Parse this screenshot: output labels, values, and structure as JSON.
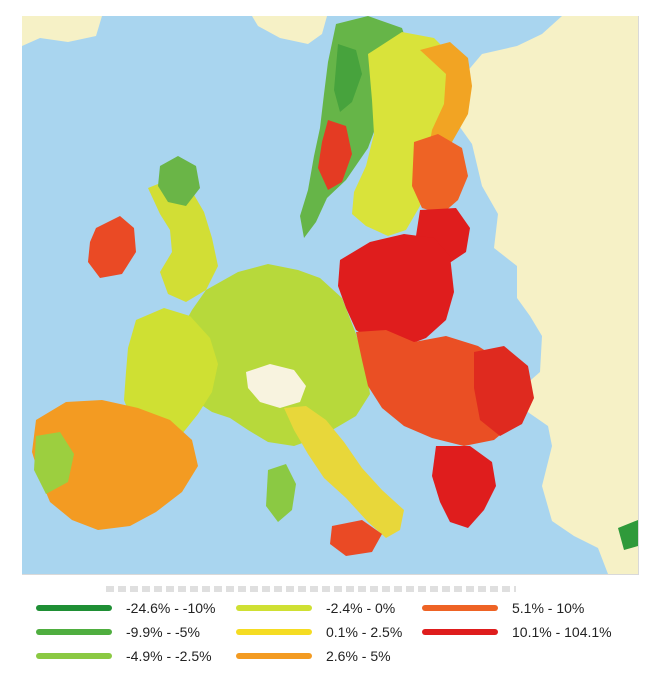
{
  "map": {
    "legend_items": [
      {
        "label": "-24.6% - -10%",
        "color": "#1f8f35"
      },
      {
        "label": "-9.9% - -5%",
        "color": "#4fae3f"
      },
      {
        "label": "-4.9% - -2.5%",
        "color": "#8bc943"
      },
      {
        "label": "-2.4% - 0%",
        "color": "#cfe033"
      },
      {
        "label": "0.1% - 2.5%",
        "color": "#f5dc22"
      },
      {
        "label": "2.6% - 5%",
        "color": "#f39b22"
      },
      {
        "label": "5.1% - 10%",
        "color": "#ee6325"
      },
      {
        "label": "10.1% - 104.1%",
        "color": "#df1d1d"
      }
    ],
    "colors": {
      "sea": "#a9d5ef",
      "outside_land": "#f6f1c6",
      "neutral_region": "#f8f3df"
    }
  }
}
